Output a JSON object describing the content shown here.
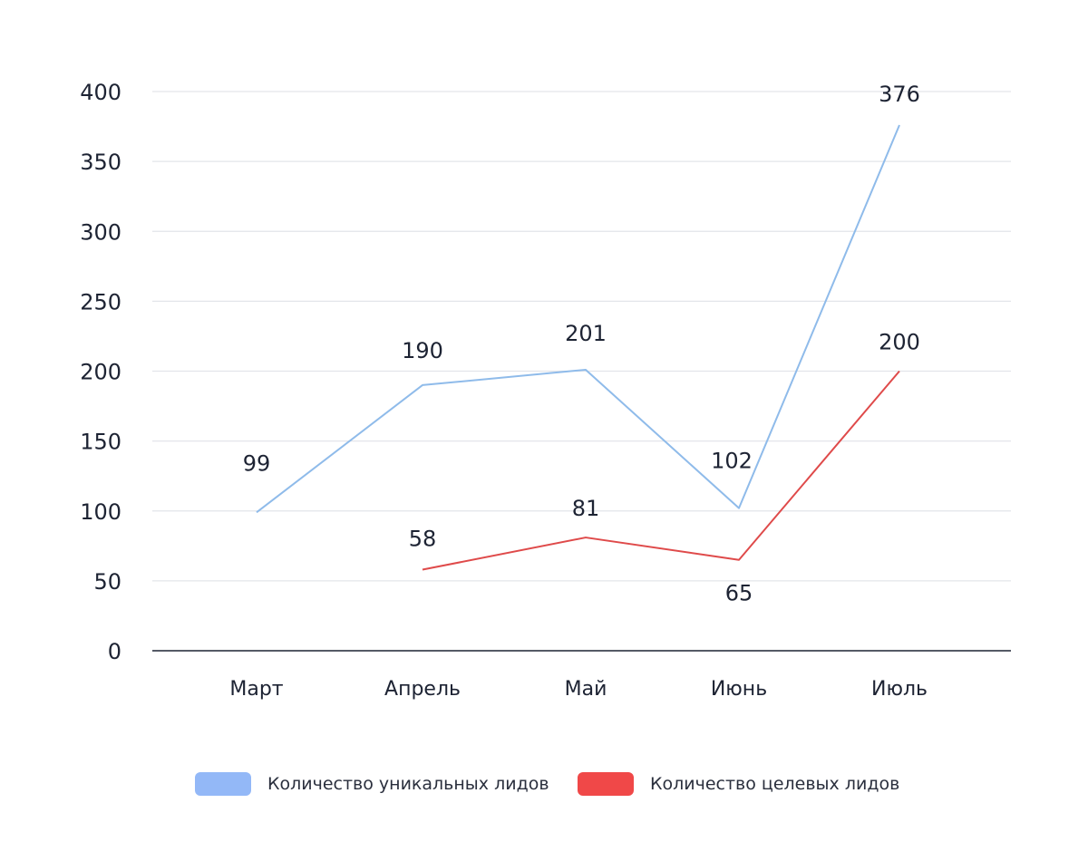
{
  "chart_data": {
    "type": "line",
    "categories": [
      "Март",
      "Апрель",
      "Май",
      "Июнь",
      "Июль"
    ],
    "ylim": [
      0,
      400
    ],
    "yticks": [
      0,
      50,
      100,
      150,
      200,
      250,
      300,
      350,
      400
    ],
    "grid": true,
    "legend_position": "bottom",
    "series": [
      {
        "name": "Количество уникальных лидов",
        "values": [
          99,
          190,
          201,
          102,
          376
        ],
        "color": "#8fbbea",
        "legend_color": "#93b8f7"
      },
      {
        "name": "Количество целевых лидов",
        "values": [
          null,
          58,
          81,
          65,
          200
        ],
        "color": "#df4a4a",
        "legend_color": "#f04848"
      }
    ]
  }
}
